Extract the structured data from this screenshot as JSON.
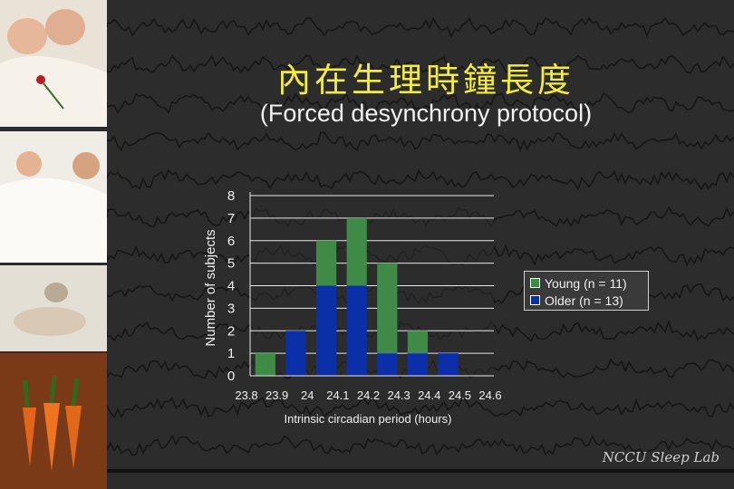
{
  "slide": {
    "title": "內在生理時鐘長度",
    "subtitle": "(Forced desynchrony protocol)",
    "signature": "NCCU Sleep Lab"
  },
  "colors": {
    "young": "#3e8a46",
    "older": "#0a2fa8",
    "background": "#2a2a2a",
    "title": "#f4ec40"
  },
  "chart_data": {
    "type": "bar",
    "stacked": true,
    "title": "",
    "xlabel": "Intrinsic circadian period (hours)",
    "ylabel": "Number of subjects",
    "x_ticks": [
      "23.8",
      "23.9",
      "24",
      "24.1",
      "24.2",
      "24.3",
      "24.4",
      "24.5",
      "24.6"
    ],
    "bin_edges": [
      23.8,
      23.9,
      24.0,
      24.1,
      24.2,
      24.3,
      24.4,
      24.5,
      24.6
    ],
    "y_ticks": [
      "0",
      "1",
      "2",
      "3",
      "4",
      "5",
      "6",
      "7",
      "8"
    ],
    "ylim": [
      0,
      8
    ],
    "grid": "horizontal",
    "legend_position": "right",
    "series": [
      {
        "name": "Older (n = 13)",
        "values": [
          0,
          2,
          4,
          4,
          1,
          1,
          1,
          0
        ]
      },
      {
        "name": "Young (n = 11)",
        "values": [
          1,
          0,
          2,
          3,
          4,
          1,
          0,
          0
        ]
      }
    ]
  },
  "legend": {
    "young_label": "Young (n = 11)",
    "older_label": "Older (n = 13)"
  }
}
